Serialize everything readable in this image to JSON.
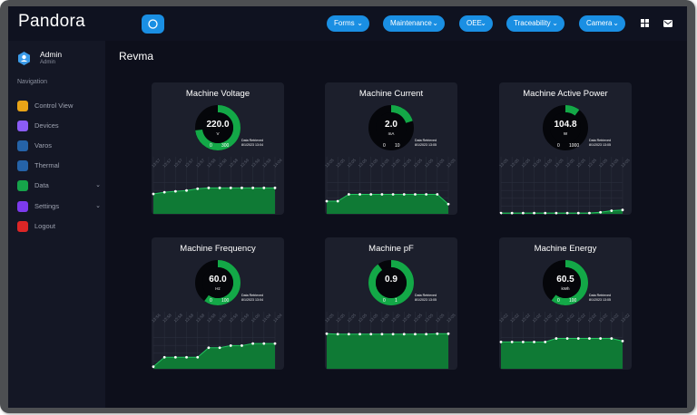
{
  "app": {
    "brand": "Pandora",
    "page_title": "Revma"
  },
  "colors": {
    "accent": "#1a8fe3",
    "gauge_fill": "#13a847",
    "chart_fill": "#0f7a35",
    "chart_line": "#22c55e"
  },
  "topnav": [
    {
      "label": "Forms",
      "icon": "chevron-down-icon"
    },
    {
      "label": "Maintenance",
      "icon": "chevron-down-icon"
    },
    {
      "label": "OEE",
      "icon": "chevron-down-icon"
    },
    {
      "label": "Traceability",
      "icon": "chevron-down-icon"
    },
    {
      "label": "Camera",
      "icon": "chevron-down-icon"
    }
  ],
  "user": {
    "name": "Admin",
    "role": "Admin"
  },
  "sidebar": {
    "heading": "Navigation",
    "items": [
      {
        "label": "Control View",
        "icon": "dashboard-icon",
        "color": "#e8a317"
      },
      {
        "label": "Devices",
        "icon": "devices-icon",
        "color": "#8b5cf6"
      },
      {
        "label": "Varos",
        "icon": "varos-icon",
        "color": "#2563a8"
      },
      {
        "label": "Thermal",
        "icon": "thermal-icon",
        "color": "#2563a8"
      },
      {
        "label": "Data",
        "icon": "data-icon",
        "color": "#16a34a"
      },
      {
        "label": "Settings",
        "icon": "settings-icon",
        "color": "#7c3aed"
      },
      {
        "label": "Logout",
        "icon": "logout-icon",
        "color": "#dc2626"
      }
    ]
  },
  "retrieved_label": "Data Retrieved",
  "cards": [
    {
      "title": "Machine Voltage",
      "value": "220.0",
      "unit": "V",
      "min": "0",
      "max": "300",
      "level": 0.73,
      "retrieved": "8/1/2023 13:04",
      "times": [
        "13:57",
        "13:57",
        "13:57",
        "13:57",
        "13:57",
        "13:58",
        "13:58",
        "13:58",
        "13:59",
        "13:59",
        "13:59",
        "14:04"
      ],
      "series": [
        203,
        205,
        206,
        207,
        209,
        210,
        210,
        210,
        210,
        210,
        210,
        210
      ],
      "ylim": [
        180,
        225
      ]
    },
    {
      "title": "Machine Current",
      "value": "2.0",
      "unit": "mA",
      "min": "0",
      "max": "10",
      "level": 0.2,
      "retrieved": "8/1/2023 13:05",
      "times": [
        "13:05",
        "13:05",
        "13:05",
        "13:05",
        "13:05",
        "13:05",
        "13:05",
        "13:05",
        "13:05",
        "13:05",
        "13:05",
        "13:05"
      ],
      "series": [
        1.3,
        1.3,
        2.0,
        2.0,
        2.0,
        2.0,
        2.0,
        2.0,
        2.0,
        2.0,
        2.0,
        1.0
      ],
      "ylim": [
        0,
        4
      ]
    },
    {
      "title": "Machine Active Power",
      "value": "104.8",
      "unit": "W",
      "min": "0",
      "max": "1000",
      "level": 0.105,
      "retrieved": "8/1/2023 13:05",
      "times": [
        "13:05",
        "13:05",
        "13:05",
        "13:05",
        "13:05",
        "13:05",
        "13:05",
        "13:05",
        "13:05",
        "13:05",
        "13:05",
        "13:05"
      ],
      "series": [
        2,
        2,
        2,
        2,
        2,
        2,
        2,
        2,
        2,
        4,
        8,
        10
      ],
      "ylim": [
        0,
        100
      ]
    },
    {
      "title": "Machine Frequency",
      "value": "60.0",
      "unit": "Hz",
      "min": "0",
      "max": "100",
      "level": 0.6,
      "retrieved": "8/1/2023 13:04",
      "times": [
        "13:56",
        "13:58",
        "13:58",
        "13:58",
        "13:58",
        "13:58",
        "13:59",
        "13:59",
        "13:59",
        "14:00",
        "14:04",
        "14:04"
      ],
      "series": [
        59.7,
        59.79,
        59.79,
        59.79,
        59.79,
        59.88,
        59.88,
        59.9,
        59.9,
        59.92,
        59.92,
        59.92
      ],
      "ylim": [
        59.68,
        60.05
      ]
    },
    {
      "title": "Machine pF",
      "value": "0.9",
      "unit": "",
      "min": "0",
      "max": "1",
      "level": 0.9,
      "retrieved": "8/1/2023 13:05",
      "times": [
        "13:05",
        "13:05",
        "13:05",
        "13:05",
        "13:05",
        "13:05",
        "13:05",
        "13:05",
        "13:05",
        "13:05",
        "13:05",
        "13:05"
      ],
      "series": [
        0.9,
        0.89,
        0.89,
        0.89,
        0.89,
        0.89,
        0.89,
        0.89,
        0.89,
        0.89,
        0.9,
        0.9
      ],
      "ylim": [
        0.0,
        1.0
      ]
    },
    {
      "title": "Machine Energy",
      "value": "60.5",
      "unit": "kWh",
      "min": "0",
      "max": "100",
      "level": 0.605,
      "retrieved": "8/1/2023 13:05",
      "times": [
        "13:02",
        "13:02",
        "13:02",
        "13:02",
        "13:02",
        "13:02",
        "13:02",
        "13:02",
        "13:02",
        "13:02",
        "13:02",
        "13:02"
      ],
      "series": [
        60.1,
        60.1,
        60.1,
        60.1,
        60.1,
        60.5,
        60.5,
        60.5,
        60.5,
        60.5,
        60.5,
        60.2
      ],
      "ylim": [
        57.0,
        61.5
      ]
    }
  ]
}
